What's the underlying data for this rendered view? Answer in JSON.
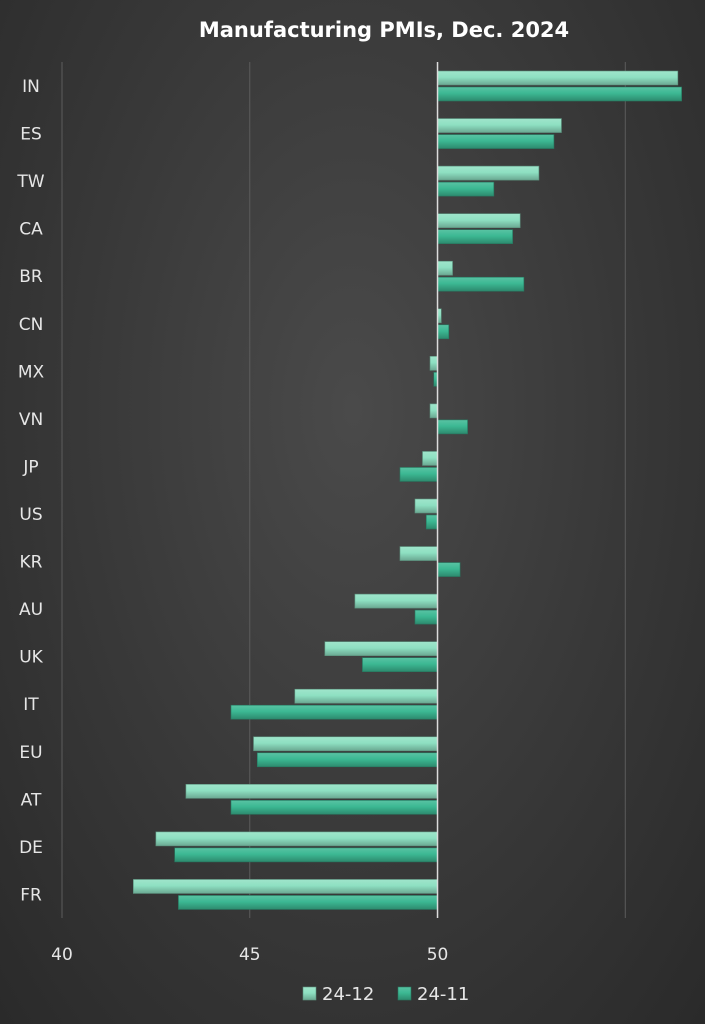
{
  "chart_data": {
    "type": "bar",
    "orientation": "horizontal",
    "title": "Manufacturing PMIs, Dec. 2024",
    "categories": [
      "IN",
      "ES",
      "TW",
      "CA",
      "BR",
      "CN",
      "MX",
      "VN",
      "JP",
      "US",
      "KR",
      "AU",
      "UK",
      "IT",
      "EU",
      "AT",
      "DE",
      "FR"
    ],
    "series": [
      {
        "name": "24-12",
        "color": "#8ee0c2",
        "values": [
          56.4,
          53.3,
          52.7,
          52.2,
          50.4,
          50.1,
          49.8,
          49.8,
          49.6,
          49.4,
          49.0,
          47.8,
          47.0,
          46.2,
          45.1,
          43.3,
          42.5,
          41.9
        ]
      },
      {
        "name": "24-11",
        "color": "#3cb893",
        "values": [
          56.5,
          53.1,
          51.5,
          52.0,
          52.3,
          50.3,
          49.9,
          50.8,
          49.0,
          49.7,
          50.6,
          49.4,
          48.0,
          44.5,
          45.2,
          44.5,
          43.0,
          43.1
        ]
      }
    ],
    "axis_origin": 50,
    "xlim": [
      40,
      56.67
    ],
    "xticks": [
      "40",
      "45",
      "50"
    ],
    "xtick_values": [
      40,
      45,
      50
    ],
    "grid": true,
    "legend": "bottom"
  }
}
